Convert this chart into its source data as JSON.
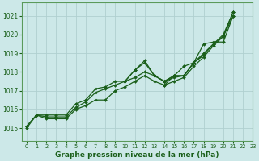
{
  "background_color": "#cce8e8",
  "grid_color": "#b0d0d0",
  "line_color": "#1a5f1a",
  "title": "Graphe pression niveau de la mer (hPa)",
  "title_fontsize": 6.5,
  "xlim": [
    -0.5,
    23
  ],
  "ylim": [
    1014.3,
    1021.7
  ],
  "yticks": [
    1015,
    1016,
    1017,
    1018,
    1019,
    1020,
    1021
  ],
  "xticks": [
    0,
    1,
    2,
    3,
    4,
    5,
    6,
    7,
    8,
    9,
    10,
    11,
    12,
    13,
    14,
    15,
    16,
    17,
    18,
    19,
    20,
    21,
    22,
    23
  ],
  "series": [
    [
      1015.0,
      1015.7,
      1015.7,
      1015.7,
      1015.7,
      1016.3,
      1016.5,
      1017.1,
      1017.2,
      1017.5,
      1017.5,
      1018.1,
      1018.5,
      1017.8,
      1017.5,
      1017.7,
      1017.8,
      1018.5,
      1019.0,
      1019.5,
      1020.0,
      1021.2,
      null,
      null
    ],
    [
      1015.1,
      1015.7,
      1015.6,
      1015.6,
      1015.6,
      1016.1,
      1016.4,
      1016.9,
      1017.1,
      1017.3,
      1017.5,
      1017.7,
      1018.0,
      1017.8,
      1017.5,
      1017.8,
      1017.8,
      1018.5,
      1018.9,
      1019.5,
      1019.9,
      1021.2,
      null,
      null
    ],
    [
      1015.1,
      1015.7,
      1015.5,
      1015.5,
      1015.5,
      1016.0,
      1016.2,
      1016.5,
      1016.5,
      1017.0,
      1017.2,
      1017.5,
      1017.8,
      1017.5,
      1017.3,
      1017.5,
      1017.7,
      1018.3,
      1018.8,
      1019.4,
      1019.9,
      1021.0,
      null,
      null
    ],
    [
      null,
      null,
      null,
      null,
      null,
      null,
      null,
      null,
      null,
      null,
      1017.5,
      1018.1,
      1018.6,
      1017.8,
      1017.5,
      1017.8,
      1017.8,
      1018.5,
      1019.5,
      1019.6,
      1019.6,
      1021.0,
      null,
      null
    ],
    [
      null,
      null,
      null,
      null,
      null,
      null,
      null,
      null,
      null,
      null,
      null,
      null,
      null,
      null,
      1017.3,
      1017.8,
      1018.3,
      1018.5,
      1018.9,
      null,
      null,
      null,
      null,
      null
    ]
  ],
  "marker": "D",
  "marker_size": 2.0,
  "line_width": 0.9
}
